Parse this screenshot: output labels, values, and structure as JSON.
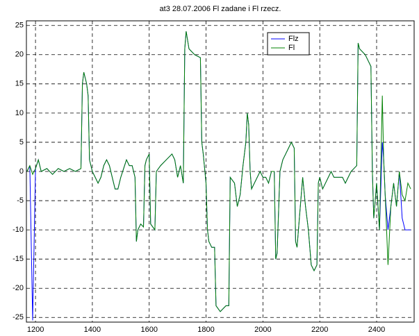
{
  "chart_data": {
    "type": "line",
    "title": "at3  28.07.2006  Fl zadane i Fl rzecz.",
    "x": [
      1170,
      1180,
      1190,
      1200,
      1210,
      1220,
      1240,
      1260,
      1280,
      1300,
      1320,
      1340,
      1360,
      1365,
      1370,
      1380,
      1385,
      1390,
      1400,
      1410,
      1420,
      1430,
      1440,
      1450,
      1460,
      1470,
      1480,
      1490,
      1500,
      1510,
      1520,
      1530,
      1540,
      1550,
      1555,
      1560,
      1570,
      1580,
      1585,
      1590,
      1600,
      1605,
      1620,
      1625,
      1640,
      1660,
      1680,
      1690,
      1700,
      1710,
      1720,
      1725,
      1730,
      1740,
      1760,
      1780,
      1785,
      1790,
      1800,
      1805,
      1810,
      1820,
      1830,
      1835,
      1850,
      1870,
      1880,
      1885,
      1900,
      1910,
      1920,
      1930,
      1940,
      1945,
      1950,
      1955,
      1960,
      1970,
      1980,
      1990,
      2000,
      2010,
      2020,
      2030,
      2040,
      2045,
      2050,
      2060,
      2070,
      2080,
      2090,
      2100,
      2110,
      2115,
      2120,
      2130,
      2140,
      2150,
      2160,
      2170,
      2180,
      2190,
      2195,
      2200,
      2210,
      2220,
      2230,
      2240,
      2250,
      2260,
      2270,
      2280,
      2290,
      2300,
      2310,
      2320,
      2330,
      2335,
      2340,
      2360,
      2370,
      2380,
      2385,
      2390,
      2400,
      2410,
      2420,
      2425,
      2430,
      2440,
      2450,
      2460,
      2470,
      2480,
      2490,
      2500,
      2510,
      2520
    ],
    "series": [
      {
        "name": "Flz",
        "color": "#0000ff",
        "values": [
          0,
          1,
          -25.5,
          0.5,
          2,
          0,
          0.5,
          -0.5,
          0.5,
          0,
          0.5,
          0,
          0.5,
          15,
          17,
          15,
          13,
          2,
          0,
          -1,
          -2,
          -1,
          1,
          2,
          1,
          -1,
          -3,
          -3,
          -1,
          0.5,
          2,
          1,
          1,
          -1,
          -12,
          -10,
          -9,
          -9.5,
          1,
          2,
          3,
          -9,
          -10,
          0,
          1,
          2,
          3,
          2,
          -1,
          1,
          -2,
          21,
          24,
          21,
          20,
          19.5,
          5,
          3,
          -2,
          -10,
          -12,
          -13,
          -13,
          -23,
          -24,
          -23,
          -23,
          -1,
          -2,
          -6,
          -4,
          1,
          5,
          10,
          8,
          0,
          -3,
          -2,
          -1,
          0,
          -1,
          -1,
          -2,
          0,
          0,
          -15,
          -14,
          0,
          2,
          3,
          4,
          5,
          4,
          -12,
          -13,
          -7,
          -1,
          -6,
          -10,
          -16,
          -17,
          -16,
          -2,
          -1,
          -3,
          -2,
          -1,
          0,
          -1,
          -1,
          -1,
          -1,
          -2,
          -1,
          0,
          0.5,
          1,
          22,
          21,
          20,
          19,
          18,
          0,
          -8,
          -2,
          -10,
          5,
          2,
          -4,
          -10,
          -6,
          -2,
          -6,
          0,
          -8,
          -10,
          -10,
          -10
        ]
      },
      {
        "name": "Fl",
        "color": "#008000",
        "values": [
          0,
          1,
          -0.5,
          0.5,
          2,
          0,
          0.5,
          -0.5,
          0.5,
          0,
          0.5,
          0,
          0.5,
          15,
          17,
          15,
          13,
          2,
          0,
          -1,
          -2,
          -1,
          1,
          2,
          1,
          -1,
          -3,
          -3,
          -1,
          0.5,
          2,
          1,
          1,
          -1,
          -12,
          -10,
          -9,
          -9.5,
          1,
          2,
          3,
          -9,
          -10,
          0,
          1,
          2,
          3,
          2,
          -1,
          1,
          -2,
          21,
          24,
          21,
          20,
          19.5,
          5,
          3,
          -2,
          -10,
          -12,
          -13,
          -13,
          -23,
          -24,
          -23,
          -23,
          -1,
          -2,
          -6,
          -4,
          1,
          5,
          10,
          8,
          0,
          -3,
          -2,
          -1,
          0,
          -1,
          -1,
          -2,
          0,
          0,
          -15,
          -14,
          0,
          2,
          3,
          4,
          5,
          4,
          -12,
          -13,
          -7,
          -1,
          -6,
          -10,
          -16,
          -17,
          -16,
          -2,
          -1,
          -3,
          -2,
          -1,
          0,
          -1,
          -1,
          -1,
          -1,
          -2,
          -1,
          0,
          0.5,
          1,
          22,
          21,
          20,
          19,
          18,
          0,
          -8,
          -2,
          -10,
          13,
          2,
          -4,
          -16,
          -6,
          -2,
          -6,
          0,
          -4,
          -5,
          -2,
          -3
        ]
      }
    ],
    "xlim": [
      1168,
      2532
    ],
    "ylim": [
      -25.8,
      25.8
    ],
    "xticks": [
      1200,
      1400,
      1600,
      1800,
      2000,
      2200,
      2400
    ],
    "yticks": [
      -25,
      -20,
      -15,
      -10,
      -5,
      0,
      5,
      10,
      15,
      20,
      25
    ],
    "grid": true
  }
}
